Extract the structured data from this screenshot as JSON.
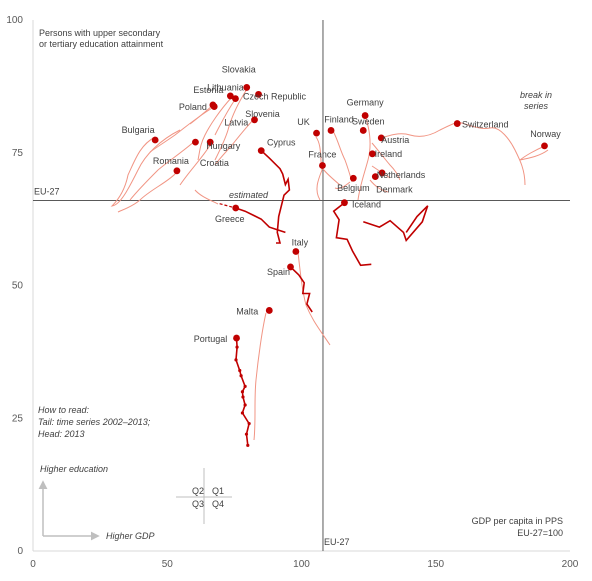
{
  "chart_data": {
    "type": "scatter",
    "title": "Persons with upper secondary or tertiary education attainment",
    "title_lines": [
      "Persons with upper secondary",
      "or tertiary education attainment"
    ],
    "xlabel_lines": [
      "GDP per capita in PPS",
      "EU-27=100"
    ],
    "xlim": [
      0,
      200
    ],
    "ylim": [
      0,
      100
    ],
    "x_ticks": [
      0,
      50,
      100,
      150,
      200
    ],
    "y_ticks": [
      0,
      25,
      50,
      75,
      100
    ],
    "x_tick_labels": [
      "0",
      "50",
      "100",
      "150",
      "200"
    ],
    "y_tick_labels": [
      "0",
      "25",
      "50",
      "75",
      "100"
    ],
    "grid": false,
    "reference_lines": {
      "x": 108,
      "x_label": "EU-27",
      "y": 66,
      "y_label": "EU-27"
    },
    "countries": [
      {
        "name": "Slovakia",
        "x": 79.6,
        "y": 87.3,
        "label_dx": -8,
        "label_dy": -18
      },
      {
        "name": "Lithuania",
        "x": 75.4,
        "y": 85.2,
        "label_dx": -10,
        "label_dy": -11
      },
      {
        "name": "Czech Republic",
        "x": 84,
        "y": 86,
        "label_dx": 16,
        "label_dy": 2
      },
      {
        "name": "Estonia",
        "x": 73.5,
        "y": 85.7,
        "label_dx": -22,
        "label_dy": -6
      },
      {
        "name": "Poland",
        "x": 67,
        "y": 84,
        "label_dx": -20,
        "label_dy": 2
      },
      {
        "name": "Slovenia",
        "x": 82.5,
        "y": 81.2,
        "label_dx": 8,
        "label_dy": -6
      },
      {
        "name": "Latvia",
        "x": 67.5,
        "y": 83.7,
        "label_dx": 22,
        "label_dy": 16
      },
      {
        "name": "Bulgaria",
        "x": 45.5,
        "y": 77.4,
        "label_dx": -17,
        "label_dy": -10
      },
      {
        "name": "Hungary",
        "x": 66,
        "y": 77,
        "label_dx": 13,
        "label_dy": 4
      },
      {
        "name": "Croatia",
        "x": 60.5,
        "y": 77,
        "label_dx": 19,
        "label_dy": 21
      },
      {
        "name": "Romania",
        "x": 53.6,
        "y": 71.6,
        "label_dx": -6,
        "label_dy": -10
      },
      {
        "name": "Cyprus",
        "x": 85,
        "y": 75.4,
        "label_dx": 20,
        "label_dy": -8
      },
      {
        "name": "Greece",
        "x": 75.5,
        "y": 64.6,
        "label_dx": -6,
        "label_dy": 11
      },
      {
        "name": "Malta",
        "x": 88,
        "y": 45.3,
        "label_dx": -22,
        "label_dy": 1
      },
      {
        "name": "Portugal",
        "x": 75.8,
        "y": 40.1,
        "label_dx": -26,
        "label_dy": 1
      },
      {
        "name": "Italy",
        "x": 97.9,
        "y": 56.4,
        "label_dx": 4,
        "label_dy": -9
      },
      {
        "name": "Spain",
        "x": 95.9,
        "y": 53.5,
        "label_dx": -12,
        "label_dy": 5
      },
      {
        "name": "Germany",
        "x": 123.7,
        "y": 82,
        "label_dx": 0,
        "label_dy": -13
      },
      {
        "name": "Finland",
        "x": 111,
        "y": 79.2,
        "label_dx": 8,
        "label_dy": -11
      },
      {
        "name": "UK",
        "x": 105.6,
        "y": 78.7,
        "label_dx": -13,
        "label_dy": -11
      },
      {
        "name": "Sweden",
        "x": 123,
        "y": 79.2,
        "label_dx": 5,
        "label_dy": -9
      },
      {
        "name": "Austria",
        "x": 129.7,
        "y": 77.8,
        "label_dx": 14,
        "label_dy": 2
      },
      {
        "name": "France",
        "x": 107.8,
        "y": 72.6,
        "label_dx": 0,
        "label_dy": -11
      },
      {
        "name": "Ireland",
        "x": 126.4,
        "y": 74.8,
        "label_dx": 16,
        "label_dy": 0
      },
      {
        "name": "Netherlands",
        "x": 130,
        "y": 71.2,
        "label_dx": 19,
        "label_dy": 2
      },
      {
        "name": "Belgium",
        "x": 119.3,
        "y": 70.2,
        "label_dx": 0,
        "label_dy": 10
      },
      {
        "name": "Denmark",
        "x": 127.5,
        "y": 70.5,
        "label_dx": 19,
        "label_dy": 13
      },
      {
        "name": "Iceland",
        "x": 116,
        "y": 65.6,
        "label_dx": 22,
        "label_dy": 2
      },
      {
        "name": "Switzerland",
        "x": 158,
        "y": 80.5,
        "label_dx": 28,
        "label_dy": 1
      },
      {
        "name": "Norway",
        "x": 190.5,
        "y": 76.3,
        "label_dx": 1,
        "label_dy": -12
      }
    ],
    "series_trails": [
      {
        "name": "Portugal",
        "bold": true,
        "points": [
          [
            75.8,
            40.1
          ],
          [
            76,
            38.4
          ],
          [
            75.6,
            36
          ],
          [
            77,
            34
          ],
          [
            77.5,
            33
          ],
          [
            79,
            31
          ],
          [
            78,
            30
          ],
          [
            78.2,
            29
          ],
          [
            79,
            27.5
          ],
          [
            78,
            26
          ],
          [
            80.5,
            24
          ],
          [
            79.5,
            22
          ],
          [
            80,
            19.9
          ]
        ]
      },
      {
        "name": "Cyprus",
        "bold": true,
        "points": [
          [
            85,
            75.4
          ],
          [
            88,
            74
          ],
          [
            92,
            72
          ],
          [
            93,
            71
          ],
          [
            94,
            69
          ],
          [
            95,
            70
          ],
          [
            95.5,
            68
          ],
          [
            93.5,
            67
          ],
          [
            91.5,
            63
          ],
          [
            91,
            60
          ],
          [
            92,
            58
          ],
          [
            90.5,
            58
          ]
        ]
      },
      {
        "name": "Spain",
        "bold": true,
        "points": [
          [
            95.9,
            53.5
          ],
          [
            99,
            52
          ],
          [
            101,
            50.5
          ],
          [
            100.5,
            48.5
          ],
          [
            103,
            48.5
          ],
          [
            102,
            46.5
          ],
          [
            104,
            45
          ]
        ]
      },
      {
        "name": "Greece",
        "bold": true,
        "points": [
          [
            75.5,
            64.6
          ],
          [
            79,
            64
          ],
          [
            85,
            62.5
          ],
          [
            88,
            61
          ],
          [
            91,
            60.5
          ],
          [
            94,
            60
          ]
        ]
      },
      {
        "name": "Iceland",
        "bold": true,
        "points": [
          [
            116,
            65.6
          ],
          [
            112,
            64
          ],
          [
            114,
            62.4
          ],
          [
            113,
            59
          ],
          [
            117,
            58.7
          ],
          [
            119,
            56.5
          ],
          [
            122,
            53.8
          ],
          [
            126,
            54
          ]
        ]
      },
      {
        "name": "Ireland",
        "bold": true,
        "points": [
          [
            123,
            62
          ],
          [
            129,
            61
          ],
          [
            133,
            62.2
          ],
          [
            138,
            60
          ],
          [
            139,
            58.5
          ],
          [
            145,
            62
          ],
          [
            147,
            65
          ],
          [
            143,
            63
          ],
          [
            139,
            60
          ]
        ]
      },
      {
        "name": "Greece estimated",
        "dashed": true,
        "points": [
          [
            69.5,
            65.4
          ],
          [
            75.5,
            64.6
          ]
        ]
      }
    ],
    "annotations": {
      "estimated": "estimated",
      "break": [
        "break in",
        "series"
      ],
      "how_to_read": [
        "How to read:",
        "Tail: time series 2002–2013;",
        "Head: 2013"
      ],
      "higher_education": "Higher education",
      "higher_gdp": "Higher GDP",
      "quadrants": [
        "Q2",
        "Q1",
        "Q3",
        "Q4"
      ]
    },
    "colors": {
      "point": "#c00000",
      "trail": "#f19584",
      "bold_trail": "#c00000",
      "ref_line": "#595959",
      "axis_text": "#595959"
    }
  }
}
